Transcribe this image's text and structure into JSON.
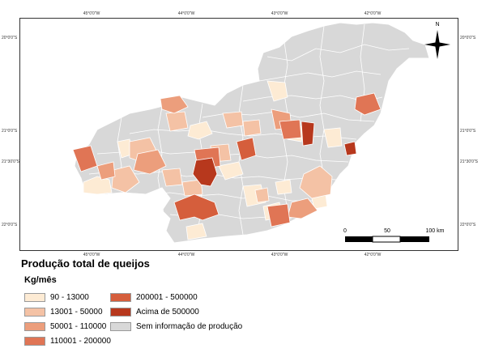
{
  "map": {
    "coord_labels": {
      "top": [
        "45°0'0\"W",
        "44°0'0\"W",
        "43°0'0\"W",
        "42°0'0\"W"
      ],
      "bottom": [
        "45°0'0\"W",
        "44°0'0\"W",
        "43°0'0\"W",
        "42°0'0\"W"
      ],
      "left": [
        "20°0'0\"S",
        "21°0'0\"S",
        "21°30'0\"S",
        "22°0'0\"S"
      ],
      "right": [
        "20°0'0\"S",
        "21°0'0\"S",
        "21°30'0\"S",
        "22°0'0\"S"
      ]
    },
    "north_label": "N",
    "scale_labels": [
      "0",
      "50",
      "100 km"
    ],
    "colors": {
      "class1": "#fdebd4",
      "class2": "#f4c2a5",
      "class3": "#ec9e7c",
      "class4": "#e07555",
      "class5": "#d55e3c",
      "class6": "#b7381d",
      "no_data": "#d8d8d8",
      "border": "#ffffff"
    }
  },
  "legend": {
    "title": "Produção total de queijos",
    "subtitle": "Kg/mês",
    "items": [
      {
        "label": "90 - 13000",
        "color": "#fdebd4"
      },
      {
        "label": "13001 - 50000",
        "color": "#f4c2a5"
      },
      {
        "label": "50001 - 110000",
        "color": "#ec9e7c"
      },
      {
        "label": "110001 - 200000",
        "color": "#e07555"
      },
      {
        "label": "200001 - 500000",
        "color": "#d55e3c"
      },
      {
        "label": "Acima de 500000",
        "color": "#b7381d"
      },
      {
        "label": "Sem informação de produção",
        "color": "#d8d8d8"
      }
    ]
  }
}
